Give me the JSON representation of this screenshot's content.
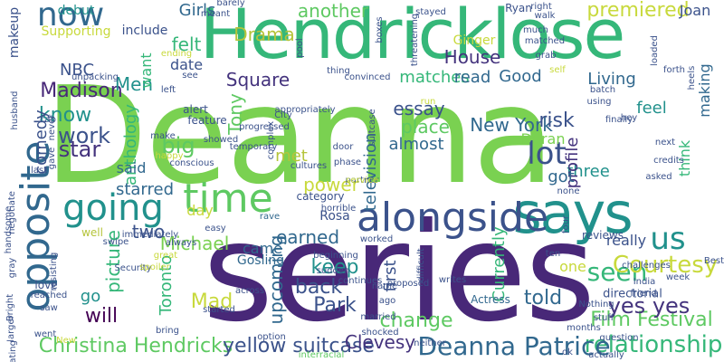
{
  "palette": {
    "green": "#5ec962",
    "lime": "#7ad151",
    "yellow": "#c8d93c",
    "teal": "#21918c",
    "cyan": "#2a9d8f",
    "blue": "#3b528b",
    "indigo": "#44337d",
    "purple": "#482878",
    "dark": "#440154",
    "sea": "#35b779",
    "slate": "#31688e",
    "ochre": "#b5c43a"
  },
  "words": [
    {
      "text": "Deanna",
      "color": "#7ad151"
    },
    {
      "text": "series",
      "color": "#482878"
    },
    {
      "text": "Hendricklose",
      "color": "#35b779"
    },
    {
      "text": "says",
      "color": "#21918c"
    },
    {
      "text": "alongside",
      "color": "#3b528b"
    },
    {
      "text": "opposite",
      "color": "#31688e"
    },
    {
      "text": "time",
      "color": "#5ec962"
    },
    {
      "text": "going",
      "color": "#21918c"
    },
    {
      "text": "now",
      "color": "#31688e"
    },
    {
      "text": "lot",
      "color": "#3b528b"
    },
    {
      "text": "seen",
      "color": "#35b779"
    },
    {
      "text": "us",
      "color": "#21918c"
    },
    {
      "text": "Courtesy",
      "color": "#c8d93c"
    },
    {
      "text": "relationship",
      "color": "#35b779"
    },
    {
      "text": "Deanna Patrice",
      "color": "#31688e"
    },
    {
      "text": "Christina Hendricks",
      "color": "#5ec962"
    },
    {
      "text": "yellow suitcase",
      "color": "#3b528b"
    },
    {
      "text": "Film Festival",
      "color": "#5ec962"
    },
    {
      "text": "yes yes",
      "color": "#44337d"
    },
    {
      "text": "premiered",
      "color": "#c8d93c"
    },
    {
      "text": "Drama",
      "color": "#b5c43a"
    },
    {
      "text": "another",
      "color": "#5ec962"
    },
    {
      "text": "House",
      "color": "#44337d"
    },
    {
      "text": "Madison",
      "color": "#482878"
    },
    {
      "text": "New York",
      "color": "#31688e"
    },
    {
      "text": "star",
      "color": "#44337d"
    },
    {
      "text": "work",
      "color": "#3b528b"
    },
    {
      "text": "know",
      "color": "#21918c"
    },
    {
      "text": "Park",
      "color": "#3b528b"
    },
    {
      "text": "back",
      "color": "#3b528b"
    },
    {
      "text": "keep",
      "color": "#21918c"
    },
    {
      "text": "change",
      "color": "#5ec962"
    },
    {
      "text": "told",
      "color": "#31688e"
    },
    {
      "text": "Mad",
      "color": "#c8d93c"
    },
    {
      "text": "Men",
      "color": "#21918c"
    },
    {
      "text": "Girls",
      "color": "#31688e"
    },
    {
      "text": "felt",
      "color": "#35b779"
    },
    {
      "text": "date",
      "color": "#3b528b"
    },
    {
      "text": "NBC",
      "color": "#3b528b"
    },
    {
      "text": "comedy",
      "color": "#3b528b"
    },
    {
      "text": "anthology",
      "color": "#35b779"
    },
    {
      "text": "want",
      "color": "#35b779"
    },
    {
      "text": "upcoming",
      "color": "#31688e"
    },
    {
      "text": "Clevesy",
      "color": "#44337d"
    },
    {
      "text": "Toronto",
      "color": "#35b779"
    },
    {
      "text": "Michael",
      "color": "#7ad151"
    },
    {
      "text": "came",
      "color": "#31688e"
    },
    {
      "text": "earned",
      "color": "#31688e"
    },
    {
      "text": "two",
      "color": "#3b528b"
    },
    {
      "text": "big",
      "color": "#5ec962"
    },
    {
      "text": "said",
      "color": "#31688e"
    },
    {
      "text": "starred",
      "color": "#31688e"
    },
    {
      "text": "day",
      "color": "#c8d93c"
    },
    {
      "text": "will",
      "color": "#440154"
    },
    {
      "text": "go",
      "color": "#21918c"
    },
    {
      "text": "picture",
      "color": "#35b779"
    },
    {
      "text": "Square",
      "color": "#44337d"
    },
    {
      "text": "Tony",
      "color": "#5ec962"
    },
    {
      "text": "met",
      "color": "#b5c43a"
    },
    {
      "text": "power",
      "color": "#c8d93c"
    },
    {
      "text": "essay",
      "color": "#3b528b"
    },
    {
      "text": "almost",
      "color": "#31688e"
    },
    {
      "text": "place",
      "color": "#5ec962"
    },
    {
      "text": "television",
      "color": "#31688e"
    },
    {
      "text": "matches",
      "color": "#35b779"
    },
    {
      "text": "read",
      "color": "#31688e"
    },
    {
      "text": "Good",
      "color": "#31688e"
    },
    {
      "text": "Living",
      "color": "#31688e"
    },
    {
      "text": "risk",
      "color": "#3b528b"
    },
    {
      "text": "Duran",
      "color": "#7ad151"
    },
    {
      "text": "three",
      "color": "#21918c"
    },
    {
      "text": "profile",
      "color": "#44337d"
    },
    {
      "text": "feel",
      "color": "#21918c"
    },
    {
      "text": "making",
      "color": "#31688e"
    },
    {
      "text": "think",
      "color": "#35b779"
    },
    {
      "text": "got",
      "color": "#31688e"
    },
    {
      "text": "first",
      "color": "#3b528b"
    },
    {
      "text": "Currently",
      "color": "#35b779"
    },
    {
      "text": "really",
      "color": "#3b528b"
    },
    {
      "text": "one",
      "color": "#c8d93c"
    },
    {
      "text": "Joan",
      "color": "#3b528b"
    },
    {
      "text": "Ginger",
      "color": "#c8d93c"
    },
    {
      "text": "Ryan",
      "color": "#3b528b"
    },
    {
      "text": "Rosa",
      "color": "#3b528b"
    },
    {
      "text": "Gosling",
      "color": "#31688e"
    },
    {
      "text": "Actress",
      "color": "#31688e"
    },
    {
      "text": "directorial",
      "color": "#3b528b"
    },
    {
      "text": "reviews",
      "color": "#3b528b"
    },
    {
      "text": "Supporting",
      "color": "#c8d93c"
    },
    {
      "text": "debut",
      "color": "#21918c"
    },
    {
      "text": "include",
      "color": "#3b528b"
    },
    {
      "text": "makeup",
      "color": "#3b528b"
    },
    {
      "text": "feature",
      "color": "#3b528b"
    },
    {
      "text": "alert",
      "color": "#3b528b"
    },
    {
      "text": "showed",
      "color": "#3b528b"
    },
    {
      "text": "temporary",
      "color": "#3b528b"
    },
    {
      "text": "Security",
      "color": "#3b528b"
    },
    {
      "text": "beginning",
      "color": "#3b528b"
    },
    {
      "text": "sudden",
      "color": "#3b528b"
    },
    {
      "text": "category",
      "color": "#3b528b"
    },
    {
      "text": "rave",
      "color": "#31688e"
    },
    {
      "text": "easy",
      "color": "#3b528b"
    },
    {
      "text": "horrible",
      "color": "#3b528b"
    },
    {
      "text": "continues",
      "color": "#3b528b"
    },
    {
      "text": "proposed",
      "color": "#3b528b"
    },
    {
      "text": "worked",
      "color": "#3b528b"
    },
    {
      "text": "name",
      "color": "#3b528b"
    },
    {
      "text": "ago",
      "color": "#3b528b"
    },
    {
      "text": "married",
      "color": "#3b528b"
    },
    {
      "text": "shocked",
      "color": "#3b528b"
    },
    {
      "text": "interracial",
      "color": "#5ec962"
    },
    {
      "text": "option",
      "color": "#3b528b"
    },
    {
      "text": "across",
      "color": "#3b528b"
    },
    {
      "text": "started",
      "color": "#3b528b"
    },
    {
      "text": "bring",
      "color": "#3b528b"
    },
    {
      "text": "spoiler",
      "color": "#c8d93c"
    },
    {
      "text": "great",
      "color": "#c8d93c"
    },
    {
      "text": "always",
      "color": "#3b528b"
    },
    {
      "text": "well",
      "color": "#b5c43a"
    },
    {
      "text": "immediately",
      "color": "#3b528b"
    },
    {
      "text": "resisting",
      "color": "#3b528b"
    },
    {
      "text": "swipe",
      "color": "#3b528b"
    },
    {
      "text": "love",
      "color": "#3b528b"
    },
    {
      "text": "reached",
      "color": "#3b528b"
    },
    {
      "text": "saw",
      "color": "#3b528b"
    },
    {
      "text": "went",
      "color": "#3b528b"
    },
    {
      "text": "larger",
      "color": "#3b528b"
    },
    {
      "text": "dating",
      "color": "#3b528b"
    },
    {
      "text": "Bright",
      "color": "#3b528b"
    },
    {
      "text": "gray",
      "color": "#3b528b"
    },
    {
      "text": "handsome",
      "color": "#3b528b"
    },
    {
      "text": "negotiate",
      "color": "#3b528b"
    },
    {
      "text": "husband",
      "color": "#3b528b"
    },
    {
      "text": "unpacking",
      "color": "#3b528b"
    },
    {
      "text": "left",
      "color": "#3b528b"
    },
    {
      "text": "cab",
      "color": "#3b528b"
    },
    {
      "text": "never",
      "color": "#3b528b"
    },
    {
      "text": "gave",
      "color": "#3b528b"
    },
    {
      "text": "last",
      "color": "#3b528b"
    },
    {
      "text": "conscious",
      "color": "#3b528b"
    },
    {
      "text": "happy",
      "color": "#c8d93c"
    },
    {
      "text": "make",
      "color": "#3b528b"
    },
    {
      "text": "see",
      "color": "#3b528b"
    },
    {
      "text": "ending",
      "color": "#c8d93c"
    },
    {
      "text": "meant",
      "color": "#3b528b"
    },
    {
      "text": "barely",
      "color": "#3b528b"
    },
    {
      "text": "pool",
      "color": "#3b528b"
    },
    {
      "text": "thing",
      "color": "#3b528b"
    },
    {
      "text": "convinced",
      "color": "#3b528b"
    },
    {
      "text": "City",
      "color": "#3b528b"
    },
    {
      "text": "appropriately",
      "color": "#3b528b"
    },
    {
      "text": "suitcase",
      "color": "#3b528b"
    },
    {
      "text": "progressed",
      "color": "#3b528b"
    },
    {
      "text": "complex",
      "color": "#3b528b"
    },
    {
      "text": "cultures",
      "color": "#3b528b"
    },
    {
      "text": "phase",
      "color": "#3b528b"
    },
    {
      "text": "door",
      "color": "#3b528b"
    },
    {
      "text": "run",
      "color": "#c8d93c"
    },
    {
      "text": "stayed",
      "color": "#3b528b"
    },
    {
      "text": "boxes",
      "color": "#3b528b"
    },
    {
      "text": "threatening",
      "color": "#3b528b"
    },
    {
      "text": "right",
      "color": "#3b528b"
    },
    {
      "text": "walk",
      "color": "#3b528b"
    },
    {
      "text": "much",
      "color": "#3b528b"
    },
    {
      "text": "matched",
      "color": "#3b528b"
    },
    {
      "text": "grab",
      "color": "#3b528b"
    },
    {
      "text": "loaded",
      "color": "#3b528b"
    },
    {
      "text": "self",
      "color": "#c8d93c"
    },
    {
      "text": "batch",
      "color": "#3b528b"
    },
    {
      "text": "using",
      "color": "#3b528b"
    },
    {
      "text": "finally",
      "color": "#3b528b"
    },
    {
      "text": "hey",
      "color": "#3b528b"
    },
    {
      "text": "forth",
      "color": "#3b528b"
    },
    {
      "text": "heels",
      "color": "#3b528b"
    },
    {
      "text": "next",
      "color": "#3b528b"
    },
    {
      "text": "credits",
      "color": "#3b528b"
    },
    {
      "text": "asked",
      "color": "#3b528b"
    },
    {
      "text": "none",
      "color": "#3b528b"
    },
    {
      "text": "four",
      "color": "#3b528b"
    },
    {
      "text": "ten",
      "color": "#3b528b"
    },
    {
      "text": "Best",
      "color": "#3b528b"
    },
    {
      "text": "week",
      "color": "#3b528b"
    },
    {
      "text": "challenges",
      "color": "#3b528b"
    },
    {
      "text": "India",
      "color": "#3b528b"
    },
    {
      "text": "friend",
      "color": "#3b528b"
    },
    {
      "text": "Nothing",
      "color": "#3b528b"
    },
    {
      "text": "stuff",
      "color": "#3b528b"
    },
    {
      "text": "months",
      "color": "#3b528b"
    },
    {
      "text": "question",
      "color": "#3b528b"
    },
    {
      "text": "ok",
      "color": "#3b528b"
    },
    {
      "text": "actually",
      "color": "#3b528b"
    },
    {
      "text": "neither",
      "color": "#3b528b"
    },
    {
      "text": "difficult",
      "color": "#3b528b"
    },
    {
      "text": "writes",
      "color": "#3b528b"
    },
    {
      "text": "New",
      "color": "#c8d93c"
    },
    {
      "text": "partner",
      "color": "#3b528b"
    },
    {
      "text": "service",
      "color": "#c8d93c"
    }
  ]
}
